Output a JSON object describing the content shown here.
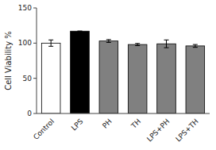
{
  "chart_data": {
    "type": "bar",
    "y_label": "Cell Viability %",
    "categories": [
      "Control",
      "LPS",
      "PH",
      "TH",
      "LPS+PH",
      "LPS+TH"
    ],
    "values": [
      100,
      117,
      103,
      98,
      99,
      96
    ],
    "errors": [
      4.5,
      0,
      2.0,
      1.5,
      5.5,
      2.0
    ],
    "colors": [
      "white",
      "black",
      "#808080",
      "#808080",
      "#808080",
      "#808080"
    ],
    "ylim": [
      0,
      150
    ],
    "yticks": [
      0,
      50,
      100,
      150
    ],
    "grid": false
  }
}
